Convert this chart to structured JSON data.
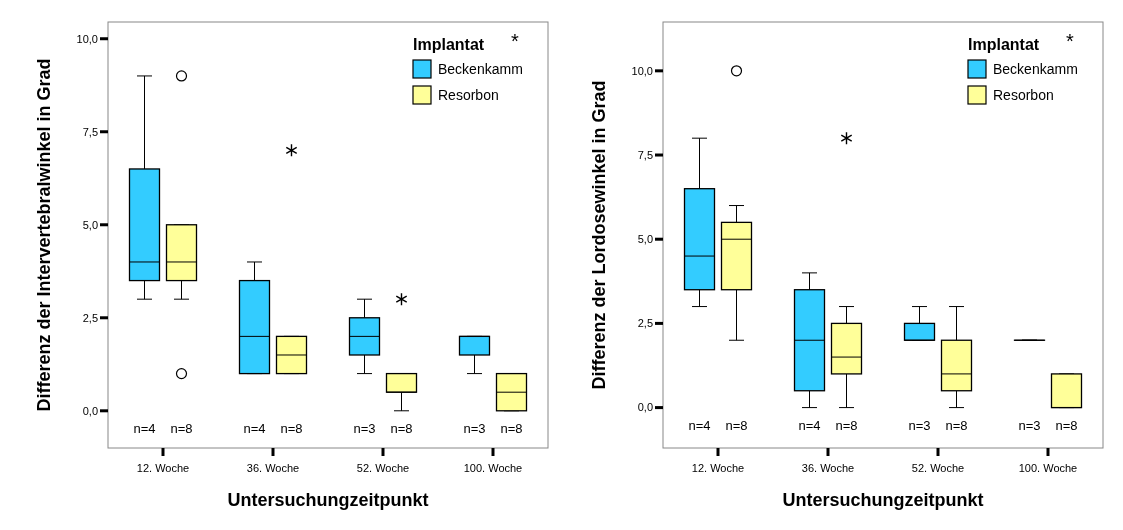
{
  "chart_data": [
    {
      "type": "box",
      "xlabel": "Untersuchungzeitpunkt",
      "ylabel": "Differenz der Intervertebralwinkel in Grad",
      "legend_title": "Implantat",
      "legend": "top right",
      "categories": [
        "12. Woche",
        "36. Woche",
        "52. Woche",
        "100. Woche"
      ],
      "ylim": [
        -1,
        10.45
      ],
      "yticks": [
        {
          "value": 0,
          "label": "0,0"
        },
        {
          "value": 2.5,
          "label": "2,5"
        },
        {
          "value": 5,
          "label": "5,0"
        },
        {
          "value": 7.5,
          "label": "7,5"
        },
        {
          "value": 10,
          "label": "10,0"
        }
      ],
      "series": [
        {
          "name": "Beckenkamm",
          "color": "#33ccff",
          "boxes": [
            {
              "low": 3,
              "q1": 3.5,
              "median": 4,
              "q3": 6.5,
              "high": 9
            },
            {
              "low": 1,
              "q1": 1,
              "median": 2,
              "q3": 3.5,
              "high": 4
            },
            {
              "low": 1,
              "q1": 1.5,
              "median": 2,
              "q3": 2.5,
              "high": 3
            },
            {
              "low": 1,
              "q1": 1.5,
              "median": 2,
              "q3": 2,
              "high": 2
            }
          ]
        },
        {
          "name": "Resorbon",
          "color": "#ffff99",
          "boxes": [
            {
              "low": 3,
              "q1": 3.5,
              "median": 4,
              "q3": 5,
              "high": 5,
              "outliers": [
                9,
                1
              ]
            },
            {
              "low": 1,
              "q1": 1,
              "median": 1.5,
              "q3": 2,
              "high": 2
            },
            {
              "low": 0,
              "q1": 0.5,
              "median": 0.5,
              "q3": 1,
              "high": 1
            },
            {
              "low": 0,
              "q1": 0,
              "median": 0.5,
              "q3": 1,
              "high": 1
            }
          ]
        },
        {
          "type": "scatter",
          "marker": "cross",
          "color": "#000000",
          "x": [
            "36. Woche",
            "52. Woche"
          ],
          "values": [
            7,
            3
          ]
        }
      ],
      "annotations": [
        "n=4",
        "n=8",
        "n=4",
        "n=8",
        "n=3",
        "n=8",
        "n=3",
        "n=8",
        "*"
      ]
    },
    {
      "type": "box",
      "xlabel": "Untersuchungzeitpunkt",
      "ylabel": "Differenz der Lordosewinkel in Grad",
      "legend_title": "Implantat",
      "legend": "top right",
      "categories": [
        "12. Woche",
        "36. Woche",
        "52. Woche",
        "100. Woche"
      ],
      "ylim": [
        -1.2,
        11.45
      ],
      "yticks": [
        {
          "value": 0,
          "label": "0,0"
        },
        {
          "value": 2.5,
          "label": "2,5"
        },
        {
          "value": 5,
          "label": "5,0"
        },
        {
          "value": 7.5,
          "label": "7,5"
        },
        {
          "value": 10,
          "label": "10,0"
        }
      ],
      "series": [
        {
          "name": "Beckenkamm",
          "color": "#33ccff",
          "boxes": [
            {
              "low": 3,
              "q1": 3.5,
              "median": 4.5,
              "q3": 6.5,
              "high": 8
            },
            {
              "low": 0,
              "q1": 0.5,
              "median": 2,
              "q3": 3.5,
              "high": 4
            },
            {
              "low": 2,
              "q1": 2,
              "median": 2,
              "q3": 2.5,
              "high": 3
            },
            {
              "low": 2,
              "q1": 2,
              "median": 2,
              "q3": 2,
              "high": 2
            }
          ]
        },
        {
          "name": "Resorbon",
          "color": "#ffff99",
          "boxes": [
            {
              "low": 2,
              "q1": 3.5,
              "median": 5,
              "q3": 5.5,
              "high": 6,
              "outliers": [
                10
              ]
            },
            {
              "low": 0,
              "q1": 1,
              "median": 1.5,
              "q3": 2.5,
              "high": 3
            },
            {
              "low": 0,
              "q1": 0.5,
              "median": 1,
              "q3": 2,
              "high": 3
            },
            {
              "low": 0,
              "q1": 0,
              "median": 0,
              "q3": 1,
              "high": 1
            }
          ]
        },
        {
          "type": "scatter",
          "marker": "cross",
          "color": "#000000",
          "x": [
            "36. Woche"
          ],
          "values": [
            8
          ]
        }
      ],
      "annotations": [
        "n=4",
        "n=8",
        "n=4",
        "n=8",
        "n=3",
        "n=8",
        "n=3",
        "n=8",
        "*"
      ]
    }
  ]
}
